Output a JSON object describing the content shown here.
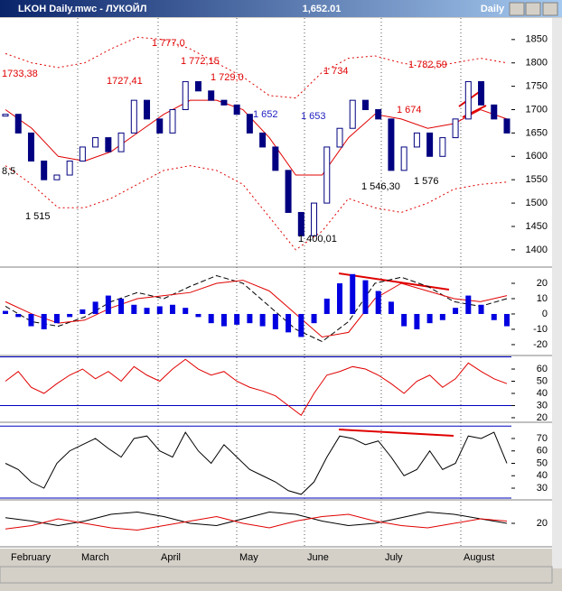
{
  "window": {
    "title": "LKOH Daily.mwc - ЛУКОЙЛ",
    "price": "1,652.01",
    "period": "Daily"
  },
  "months": [
    "February",
    "March",
    "April",
    "May",
    "June",
    "July",
    "August"
  ],
  "chart_data": [
    {
      "type": "price",
      "ylim": [
        1365,
        1896
      ],
      "yticks": [
        1400,
        1450,
        1500,
        1550,
        1600,
        1650,
        1700,
        1750,
        1800,
        1850
      ],
      "values": [
        1690,
        1650,
        1590,
        1550,
        1560,
        1590,
        1620,
        1640,
        1610,
        1650,
        1720,
        1680,
        1650,
        1700,
        1760,
        1740,
        1720,
        1710,
        1690,
        1650,
        1620,
        1570,
        1480,
        1430,
        1500,
        1620,
        1660,
        1720,
        1700,
        1680,
        1570,
        1620,
        1650,
        1600,
        1640,
        1680,
        1760,
        1710,
        1680,
        1650
      ],
      "color": "#000080",
      "series": [
        {
          "color": "#e00000",
          "style": "dotted",
          "values": [
            1820,
            1800,
            1790,
            1800,
            1830,
            1855,
            1850,
            1830,
            1800,
            1770,
            1730,
            1725,
            1780,
            1810,
            1815,
            1800,
            1790,
            1800,
            1810,
            1800
          ]
        },
        {
          "color": "#e00000",
          "style": "dotted",
          "values": [
            1580,
            1540,
            1490,
            1490,
            1510,
            1540,
            1570,
            1580,
            1570,
            1540,
            1470,
            1400,
            1440,
            1510,
            1490,
            1480,
            1500,
            1530,
            1540,
            1545
          ]
        },
        {
          "color": "#e00000",
          "style": "solid",
          "values": [
            1700,
            1660,
            1600,
            1590,
            1610,
            1650,
            1690,
            1720,
            1720,
            1700,
            1640,
            1560,
            1560,
            1640,
            1690,
            1680,
            1660,
            1670,
            1700,
            1680
          ]
        }
      ],
      "annotations": [
        {
          "text": "1733,38",
          "color": "#e00000"
        },
        {
          "text": "1727,41",
          "color": "#e00000"
        },
        {
          "text": "1 777,0",
          "color": "#e00000"
        },
        {
          "text": "1 772,15",
          "color": "#e00000"
        },
        {
          "text": "1 729,0",
          "color": "#e00000"
        },
        {
          "text": "1 652",
          "color": "#2020c0"
        },
        {
          "text": "1 653",
          "color": "#2020c0"
        },
        {
          "text": "1 734",
          "color": "#e00000"
        },
        {
          "text": "1 782,59",
          "color": "#e00000"
        },
        {
          "text": "1 674",
          "color": "#e00000"
        },
        {
          "text": "8,5",
          "color": "#000000"
        },
        {
          "text": "1 515",
          "color": "#000000"
        },
        {
          "text": "1 546,30",
          "color": "#000000"
        },
        {
          "text": "1 576",
          "color": "#000000"
        },
        {
          "text": "1 400,01",
          "color": "#000000"
        }
      ]
    },
    {
      "type": "macd",
      "ylim": [
        -26.5,
        30
      ],
      "yticks": [
        20,
        10,
        0,
        -10,
        -20
      ],
      "color": "#0000e0",
      "values": [
        2,
        -2,
        -8,
        -10,
        -6,
        -2,
        3,
        8,
        12,
        10,
        6,
        4,
        5,
        6,
        4,
        -2,
        -6,
        -8,
        -7,
        -6,
        -8,
        -10,
        -12,
        -15,
        -6,
        10,
        20,
        26,
        22,
        15,
        8,
        -8,
        -10,
        -6,
        -4,
        4,
        12,
        6,
        -4,
        -8
      ],
      "series": [
        {
          "color": "#000000",
          "style": "dashed",
          "values": [
            5,
            -5,
            -8,
            -2,
            8,
            14,
            10,
            18,
            25,
            20,
            5,
            -10,
            -18,
            -5,
            20,
            24,
            18,
            8,
            5,
            10
          ]
        },
        {
          "color": "#e00000",
          "style": "solid",
          "values": [
            8,
            0,
            -6,
            -4,
            4,
            10,
            12,
            14,
            20,
            22,
            15,
            0,
            -15,
            -12,
            10,
            20,
            15,
            10,
            8,
            12
          ]
        }
      ]
    },
    {
      "type": "line",
      "ylim": [
        17,
        70.4
      ],
      "yticks": [
        60,
        50,
        40,
        30,
        20
      ],
      "hlines": [
        70,
        30
      ],
      "series": [
        {
          "color": "#e00000",
          "style": "solid",
          "values": [
            50,
            58,
            45,
            40,
            48,
            55,
            60,
            52,
            58,
            50,
            62,
            55,
            50,
            60,
            68,
            60,
            55,
            58,
            50,
            45,
            42,
            38,
            30,
            22,
            40,
            55,
            58,
            62,
            60,
            55,
            48,
            40,
            50,
            55,
            45,
            52,
            65,
            58,
            52,
            48
          ]
        }
      ]
    },
    {
      "type": "line",
      "ylim": [
        21.3,
        81.6
      ],
      "yticks": [
        70,
        60,
        50,
        40,
        30
      ],
      "hlines": [
        80,
        22
      ],
      "series": [
        {
          "color": "#000000",
          "style": "solid",
          "values": [
            50,
            45,
            35,
            30,
            50,
            60,
            65,
            70,
            62,
            55,
            70,
            72,
            60,
            55,
            75,
            60,
            50,
            65,
            55,
            45,
            40,
            35,
            28,
            25,
            35,
            55,
            72,
            70,
            65,
            68,
            55,
            40,
            45,
            60,
            45,
            50,
            72,
            70,
            75,
            50
          ]
        }
      ]
    },
    {
      "type": "line",
      "ylim": [
        0,
        40
      ],
      "yticks": [
        20
      ],
      "series": [
        {
          "color": "#000000",
          "style": "solid",
          "values": [
            25,
            22,
            18,
            22,
            28,
            30,
            26,
            20,
            18,
            24,
            30,
            28,
            22,
            18,
            20,
            25,
            30,
            28,
            24,
            20
          ]
        },
        {
          "color": "#e00000",
          "style": "solid",
          "values": [
            15,
            18,
            24,
            20,
            16,
            14,
            18,
            22,
            26,
            20,
            16,
            22,
            26,
            28,
            22,
            18,
            16,
            20,
            24,
            22
          ]
        }
      ]
    }
  ]
}
